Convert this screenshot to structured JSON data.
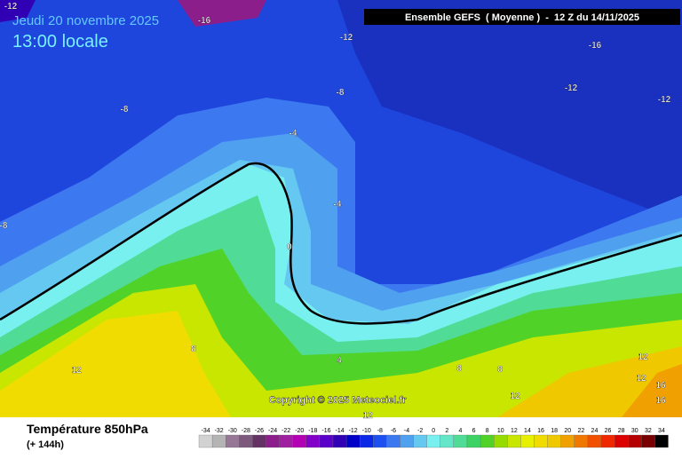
{
  "header": {
    "date": "Jeudi 20 novembre 2025",
    "time": "13:00 locale",
    "model": "Ensemble GEFS  ( Moyenne )  -  12 Z du 14/11/2025"
  },
  "copyright": "Copyright © 2025 Meteociel.fr",
  "footer": {
    "title": "Température 850hPa",
    "lead": "(+ 144h)"
  },
  "contour_labels": [
    -12,
    -16,
    -12,
    -16,
    -12,
    -12,
    -8,
    -8,
    -4,
    -4,
    -8,
    0,
    8,
    4,
    12,
    8,
    8,
    12,
    12,
    12,
    16,
    16,
    12
  ],
  "legend": {
    "values": [
      -34,
      -32,
      -30,
      -28,
      -26,
      -24,
      -22,
      -20,
      -18,
      -16,
      -14,
      -12,
      -10,
      -8,
      -6,
      -4,
      -2,
      0,
      2,
      4,
      6,
      8,
      10,
      12,
      14,
      16,
      18,
      20,
      22,
      24,
      26,
      28,
      30,
      32,
      34
    ],
    "colors": [
      "#d2d2d2",
      "#b4b4b4",
      "#967896",
      "#7d5a7d",
      "#643264",
      "#8c1e8c",
      "#a01ea0",
      "#b400b4",
      "#8200c8",
      "#5a00c8",
      "#3200b4",
      "#0000c8",
      "#0a28e6",
      "#1e50f0",
      "#3c78f0",
      "#50a0f0",
      "#64c8f0",
      "#78f0f0",
      "#64e6c8",
      "#50dc96",
      "#3cd264",
      "#50d228",
      "#96dc00",
      "#c8e600",
      "#e6f000",
      "#f0dc00",
      "#f0c800",
      "#f0a000",
      "#f07800",
      "#f05000",
      "#f02800",
      "#dc0000",
      "#b40000",
      "#780000",
      "#000000"
    ]
  }
}
